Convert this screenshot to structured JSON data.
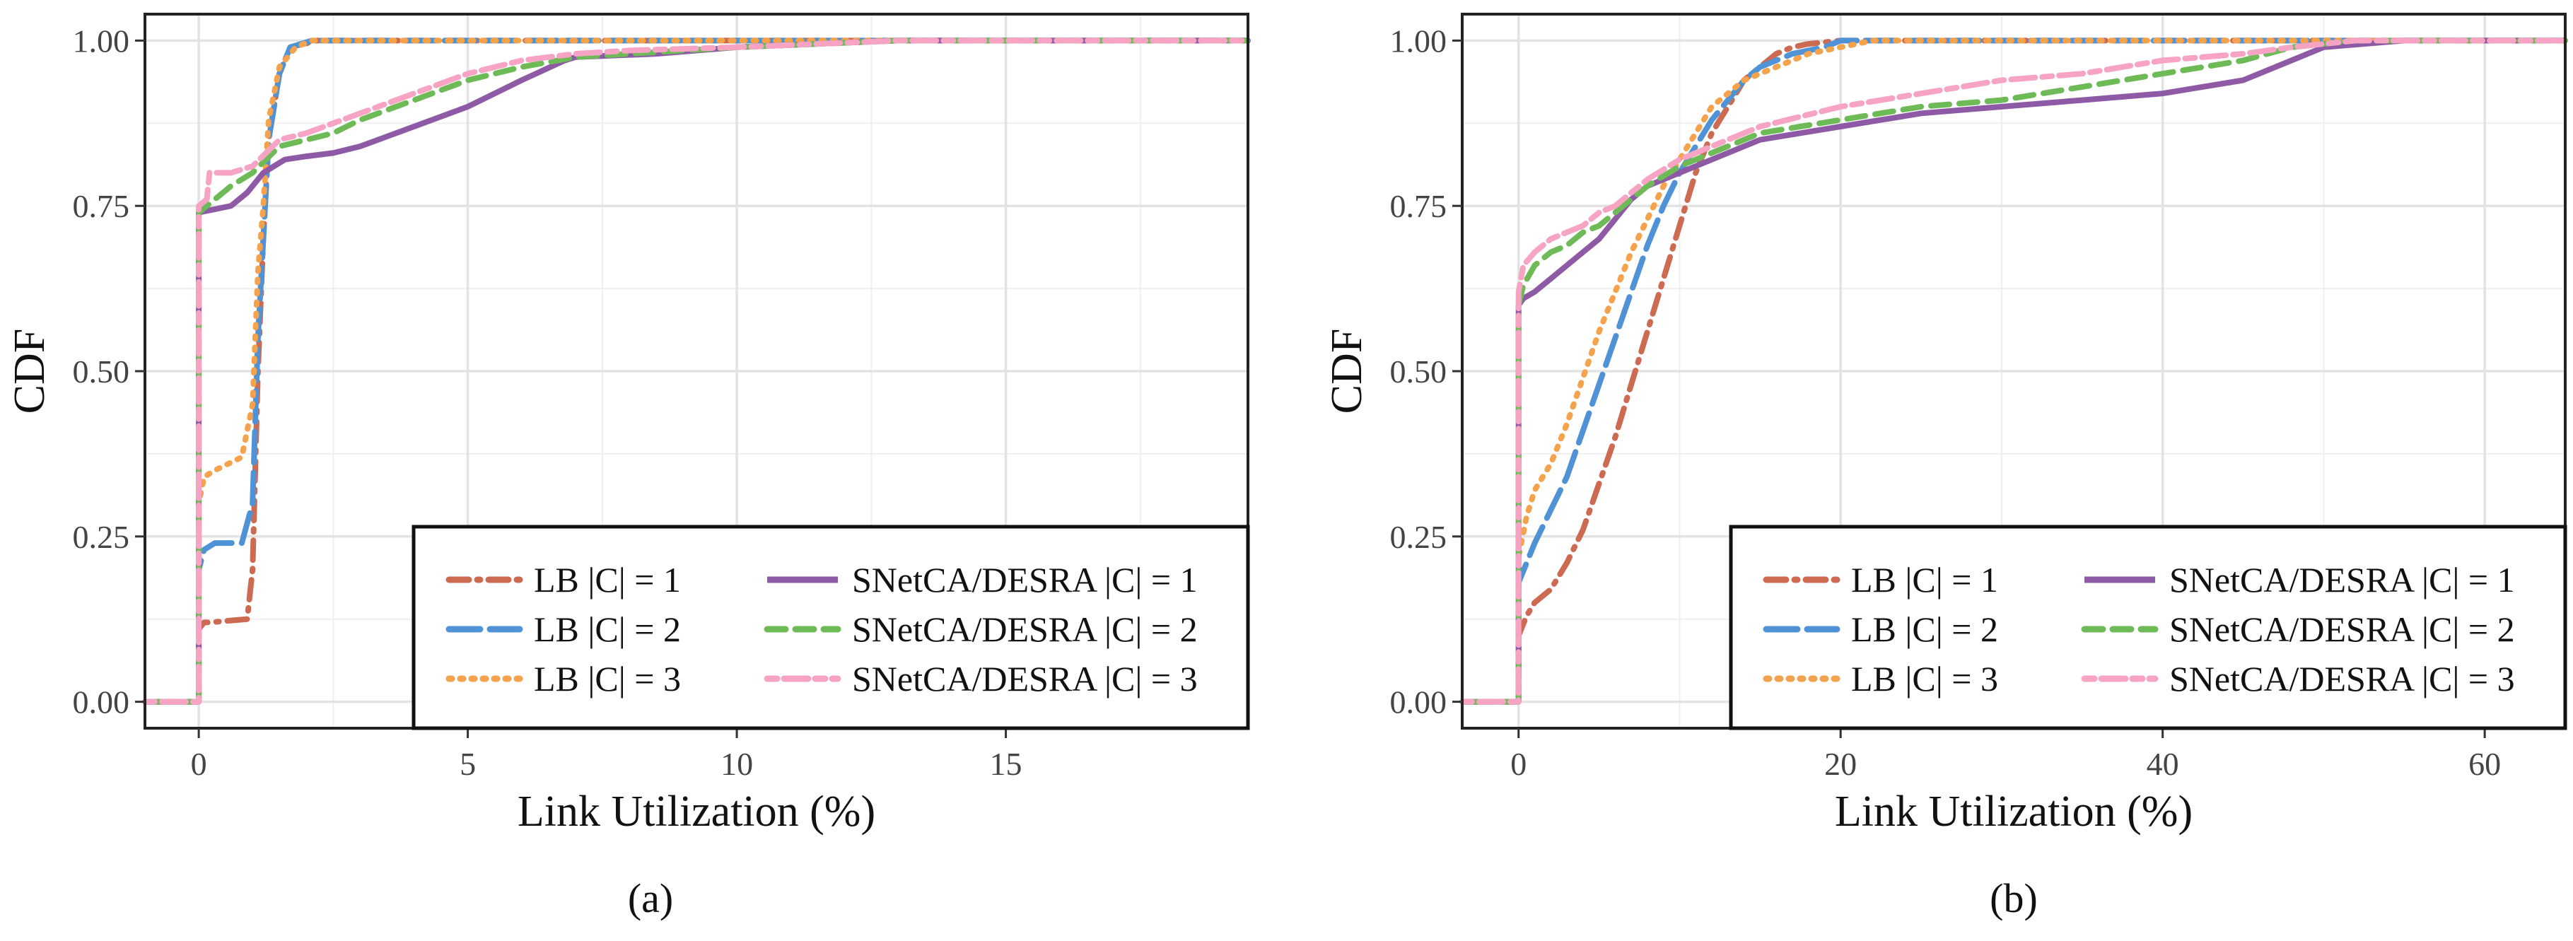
{
  "colors": {
    "lb1": "#cc6a52",
    "lb2": "#4f93d6",
    "lb3": "#f4a24c",
    "snet1": "#8e5aa6",
    "snet2": "#6dba57",
    "snet3": "#f7a3c4",
    "grid_major": "#e3e3e3",
    "grid_minor": "#efefef"
  },
  "figure": {
    "panel_labels": [
      "(a)",
      "(b)"
    ]
  },
  "chart_data": [
    {
      "type": "line",
      "title": "",
      "xlabel": "Link Utilization (%)",
      "ylabel": "CDF",
      "xlim": [
        -1.0,
        19.5
      ],
      "ylim": [
        -0.04,
        1.04
      ],
      "x_ticks": [
        0,
        5,
        10,
        15
      ],
      "x_tick_labels": [
        "0",
        "5",
        "10",
        "15"
      ],
      "x_minor_ticks": [
        2.5,
        7.5,
        12.5,
        17.5
      ],
      "y_ticks": [
        0,
        0.25,
        0.5,
        0.75,
        1
      ],
      "y_tick_labels": [
        "0.00",
        "0.25",
        "0.50",
        "0.75",
        "1.00"
      ],
      "grid": true,
      "legend_position": "bottom-right",
      "series": [
        {
          "name": "LB |C| = 1",
          "style": "dotdash",
          "color_key": "lb1",
          "x": [
            -1,
            0,
            0,
            0.1,
            0.2,
            0.9,
            1.0,
            1.1,
            1.2,
            1.3,
            1.5,
            1.7,
            2.2,
            19.5
          ],
          "y": [
            0,
            0,
            0.11,
            0.12,
            0.12,
            0.125,
            0.2,
            0.5,
            0.7,
            0.85,
            0.95,
            0.99,
            1.0,
            1.0
          ]
        },
        {
          "name": "LB |C| = 2",
          "style": "longdash",
          "color_key": "lb2",
          "x": [
            -1,
            0,
            0,
            0.1,
            0.3,
            0.8,
            1.0,
            1.1,
            1.2,
            1.3,
            1.5,
            1.7,
            2.1,
            19.5
          ],
          "y": [
            0,
            0,
            0.2,
            0.23,
            0.24,
            0.24,
            0.3,
            0.55,
            0.7,
            0.85,
            0.95,
            0.99,
            1.0,
            1.0
          ]
        },
        {
          "name": "LB |C| = 3",
          "style": "dotted",
          "color_key": "lb3",
          "x": [
            -1,
            0,
            0,
            0.1,
            0.3,
            0.8,
            1.0,
            1.1,
            1.2,
            1.3,
            1.5,
            1.8,
            2.1,
            19.5
          ],
          "y": [
            0,
            0,
            0.3,
            0.34,
            0.35,
            0.37,
            0.45,
            0.65,
            0.75,
            0.88,
            0.96,
            0.99,
            1.0,
            1.0
          ]
        },
        {
          "name": "SNetCA/DESRA |C| = 1",
          "style": "solid",
          "color_key": "snet1",
          "x": [
            -1,
            0,
            0,
            0.3,
            0.6,
            0.9,
            1.2,
            1.6,
            2.0,
            2.5,
            3.0,
            4.0,
            5.0,
            6.0,
            6.8,
            7.0,
            8.5,
            10.0,
            13.0,
            19.5
          ],
          "y": [
            0,
            0,
            0.74,
            0.745,
            0.75,
            0.77,
            0.8,
            0.82,
            0.825,
            0.83,
            0.84,
            0.87,
            0.9,
            0.94,
            0.97,
            0.975,
            0.98,
            0.99,
            1.0,
            1.0
          ]
        },
        {
          "name": "SNetCA/DESRA |C| = 2",
          "style": "dashed",
          "color_key": "snet2",
          "x": [
            -1,
            0,
            0,
            0.3,
            0.6,
            1.0,
            1.5,
            2.0,
            2.5,
            3.0,
            4.0,
            5.0,
            6.0,
            7.0,
            8.0,
            10.0,
            13.0,
            19.5
          ],
          "y": [
            0,
            0,
            0.74,
            0.76,
            0.78,
            0.8,
            0.84,
            0.85,
            0.86,
            0.88,
            0.91,
            0.94,
            0.96,
            0.975,
            0.98,
            0.99,
            1.0,
            1.0
          ]
        },
        {
          "name": "SNetCA/DESRA |C| = 3",
          "style": "twodash",
          "color_key": "snet3",
          "x": [
            -1,
            0,
            0,
            0.15,
            0.2,
            0.6,
            1.0,
            1.5,
            2.0,
            2.5,
            3.0,
            4.0,
            5.0,
            6.0,
            7.0,
            8.0,
            10.0,
            13.0,
            19.5
          ],
          "y": [
            0,
            0,
            0.75,
            0.76,
            0.8,
            0.8,
            0.81,
            0.85,
            0.86,
            0.875,
            0.89,
            0.92,
            0.95,
            0.97,
            0.98,
            0.985,
            0.99,
            1.0,
            1.0
          ]
        }
      ]
    },
    {
      "type": "line",
      "title": "",
      "xlabel": "Link Utilization (%)",
      "ylabel": "CDF",
      "xlim": [
        -3.5,
        65
      ],
      "ylim": [
        -0.04,
        1.04
      ],
      "x_ticks": [
        0,
        20,
        40,
        60
      ],
      "x_tick_labels": [
        "0",
        "20",
        "40",
        "60"
      ],
      "x_minor_ticks": [
        10,
        30,
        50
      ],
      "y_ticks": [
        0,
        0.25,
        0.5,
        0.75,
        1
      ],
      "y_tick_labels": [
        "0.00",
        "0.25",
        "0.50",
        "0.75",
        "1.00"
      ],
      "grid": true,
      "legend_position": "bottom-right",
      "series": [
        {
          "name": "LB |C| = 1",
          "style": "dotdash",
          "color_key": "lb1",
          "x": [
            -3.5,
            0,
            0,
            0.5,
            1,
            2,
            3,
            4,
            5,
            6,
            7,
            8,
            9,
            10,
            11,
            12,
            13,
            14,
            15,
            16,
            17,
            18,
            20,
            65
          ],
          "y": [
            0,
            0,
            0.1,
            0.13,
            0.15,
            0.17,
            0.21,
            0.26,
            0.33,
            0.4,
            0.48,
            0.56,
            0.64,
            0.72,
            0.8,
            0.86,
            0.9,
            0.94,
            0.96,
            0.98,
            0.99,
            0.995,
            1.0,
            1.0
          ]
        },
        {
          "name": "LB |C| = 2",
          "style": "longdash",
          "color_key": "lb2",
          "x": [
            -3.5,
            0,
            0,
            0.5,
            1,
            2,
            3,
            4,
            5,
            6,
            7,
            8,
            9,
            10,
            11,
            12,
            13,
            14,
            15,
            17,
            19,
            20,
            65
          ],
          "y": [
            0,
            0,
            0.18,
            0.21,
            0.24,
            0.29,
            0.34,
            0.41,
            0.48,
            0.55,
            0.62,
            0.69,
            0.75,
            0.8,
            0.84,
            0.88,
            0.91,
            0.94,
            0.96,
            0.98,
            0.99,
            1.0,
            1.0
          ]
        },
        {
          "name": "LB |C| = 3",
          "style": "dotted",
          "color_key": "lb3",
          "x": [
            -3.5,
            0,
            0,
            0.5,
            1,
            2,
            3,
            4,
            5,
            6,
            7,
            8,
            9,
            10,
            11,
            12,
            13,
            14,
            16,
            18,
            20,
            22,
            65
          ],
          "y": [
            0,
            0,
            0.22,
            0.28,
            0.32,
            0.36,
            0.42,
            0.49,
            0.56,
            0.62,
            0.68,
            0.73,
            0.78,
            0.82,
            0.86,
            0.9,
            0.92,
            0.94,
            0.96,
            0.98,
            0.99,
            1.0,
            1.0
          ]
        },
        {
          "name": "SNetCA/DESRA |C| = 1",
          "style": "solid",
          "color_key": "snet1",
          "x": [
            -3.5,
            0,
            0,
            0.3,
            1,
            2,
            3,
            4,
            5,
            6,
            7,
            8,
            10,
            12,
            15,
            20,
            25,
            30,
            35,
            40,
            45,
            48,
            50,
            55,
            65
          ],
          "y": [
            0,
            0,
            0.6,
            0.61,
            0.62,
            0.64,
            0.66,
            0.68,
            0.7,
            0.73,
            0.76,
            0.78,
            0.8,
            0.82,
            0.85,
            0.87,
            0.89,
            0.9,
            0.91,
            0.92,
            0.94,
            0.97,
            0.99,
            1.0,
            1.0
          ]
        },
        {
          "name": "SNetCA/DESRA |C| = 2",
          "style": "dashed",
          "color_key": "snet2",
          "x": [
            -3.5,
            0,
            0,
            0.3,
            1,
            2,
            3,
            4,
            5,
            6,
            7,
            8,
            10,
            15,
            20,
            25,
            30,
            35,
            40,
            45,
            48,
            52,
            65
          ],
          "y": [
            0,
            0,
            0.6,
            0.63,
            0.66,
            0.68,
            0.69,
            0.71,
            0.72,
            0.74,
            0.76,
            0.78,
            0.81,
            0.86,
            0.88,
            0.9,
            0.91,
            0.93,
            0.95,
            0.97,
            0.99,
            1.0,
            1.0
          ]
        },
        {
          "name": "SNetCA/DESRA |C| = 3",
          "style": "twodash",
          "color_key": "snet3",
          "x": [
            -3.5,
            0,
            0,
            0.3,
            1,
            2,
            3,
            4,
            5,
            6,
            7,
            8,
            10,
            15,
            20,
            25,
            30,
            35,
            40,
            45,
            48,
            52,
            65
          ],
          "y": [
            0,
            0,
            0.62,
            0.66,
            0.68,
            0.7,
            0.71,
            0.72,
            0.74,
            0.75,
            0.77,
            0.79,
            0.82,
            0.87,
            0.9,
            0.92,
            0.94,
            0.95,
            0.97,
            0.98,
            0.99,
            1.0,
            1.0
          ]
        }
      ]
    }
  ]
}
